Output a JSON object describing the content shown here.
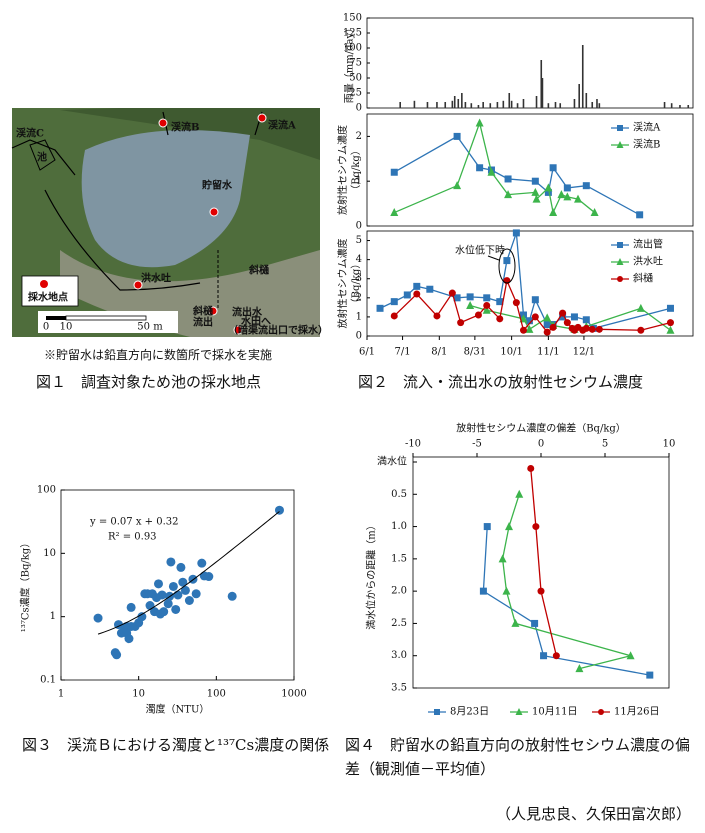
{
  "figure1": {
    "labels": [
      "渓流C",
      "池",
      "渓流B",
      "渓流A",
      "貯留水",
      "斜樋",
      "洪水吐",
      "採水地点",
      "斜樋",
      "流出",
      "流出水",
      "水田へ",
      "（暗渠流出口で採水）"
    ],
    "scale_labels": [
      "0",
      "10",
      "50 m"
    ],
    "note": "※貯留水は鉛直方向に数箇所で採水を実施"
  },
  "captions": [
    "図１　調査対象ため池の採水地点",
    "図２　流入・流出水の放射性セシウム濃度",
    "図３　渓流Ｂにおける濁度と¹³⁷Cs濃度の関係",
    "図４　貯留水の鉛直方向の放射性セシウム濃度の偏差（観測値－平均値）"
  ],
  "author": "（人見忠良、久保田富次郎）",
  "chart_data": [
    {
      "type": "panels",
      "xlim": [
        "6/1",
        "3/3"
      ],
      "xticks": [
        "6/1",
        "7/1",
        "8/1",
        "8/31",
        "10/1",
        "11/1",
        "12/1"
      ],
      "panels": [
        {
          "type": "bar",
          "ylabel": [
            "雨量（mm/day）"
          ],
          "ylim": [
            0,
            150
          ],
          "yticks": [
            0,
            25,
            50,
            75,
            100,
            125,
            150
          ],
          "color": "#333333",
          "x": [
            "6/29",
            "7/11",
            "7/22",
            "7/30",
            "8/6",
            "8/12",
            "8/14",
            "8/17",
            "8/20",
            "8/23",
            "8/28",
            "9/3",
            "9/7",
            "9/13",
            "9/19",
            "9/24",
            "9/29",
            "10/1",
            "10/6",
            "10/11",
            "10/22",
            "10/26",
            "10/27",
            "11/1",
            "11/7",
            "11/11",
            "11/23",
            "11/27",
            "11/30",
            "12/3",
            "12/8",
            "12/12",
            "12/14",
            "2/7",
            "2/13",
            "2/20",
            "2/27"
          ],
          "values": [
            10,
            12,
            10,
            10,
            10,
            12,
            20,
            15,
            25,
            10,
            8,
            5,
            10,
            8,
            10,
            12,
            25,
            12,
            8,
            15,
            20,
            80,
            50,
            8,
            10,
            8,
            15,
            40,
            105,
            25,
            10,
            15,
            8,
            10,
            8,
            5,
            5
          ]
        },
        {
          "type": "line",
          "ylabel": [
            "放射性セシウム濃度",
            "（Bq/kg）"
          ],
          "ylim": [
            0,
            2.5
          ],
          "yticks": [
            0,
            1,
            2
          ],
          "legend": "upper right",
          "series": [
            {
              "name": "渓流A",
              "color": "#2e75b6",
              "marker": "square",
              "x": [
                "6/24",
                "8/16",
                "9/4",
                "9/14",
                "9/28",
                "10/21",
                "11/1",
                "11/5",
                "11/17",
                "12/3",
                "1/17"
              ],
              "values": [
                1.2,
                2.0,
                1.3,
                1.25,
                1.05,
                1.0,
                0.75,
                1.3,
                0.85,
                0.9,
                0.25
              ]
            },
            {
              "name": "渓流B",
              "color": "#3cb44b",
              "marker": "triangle",
              "x": [
                "6/24",
                "8/16",
                "9/4",
                "9/14",
                "9/28",
                "10/21",
                "10/22",
                "11/1",
                "11/5",
                "11/12",
                "11/17",
                "11/26",
                "12/10"
              ],
              "values": [
                0.3,
                0.9,
                2.3,
                1.2,
                0.7,
                0.75,
                0.6,
                0.85,
                0.3,
                0.7,
                0.65,
                0.6,
                0.3
              ]
            }
          ]
        },
        {
          "type": "line",
          "ylabel": [
            "放射性セシウム濃度",
            "（Bq/kg）"
          ],
          "ylim": [
            0,
            5.5
          ],
          "yticks": [
            0,
            1,
            2,
            3,
            4,
            5
          ],
          "legend": "upper right",
          "annotation": "水位低下時",
          "series": [
            {
              "name": "流出管",
              "color": "#2e75b6",
              "marker": "square",
              "x": [
                "6/12",
                "6/24",
                "7/5",
                "7/13",
                "7/24",
                "8/16",
                "8/27",
                "9/10",
                "9/21",
                "9/27",
                "10/5",
                "10/11",
                "10/16",
                "10/21",
                "10/31",
                "11/5",
                "11/13",
                "11/23",
                "12/3",
                "12/9",
                "2/12"
              ],
              "values": [
                1.45,
                1.8,
                2.15,
                2.6,
                2.45,
                2.0,
                2.05,
                2.0,
                1.8,
                3.95,
                5.4,
                1.1,
                0.8,
                1.9,
                0.6,
                0.6,
                1.0,
                1.0,
                0.85,
                0.4,
                1.45
              ]
            },
            {
              "name": "洪水吐",
              "color": "#3cb44b",
              "marker": "triangle",
              "x": [
                "8/27",
                "9/10",
                "10/11",
                "10/16",
                "10/31",
                "11/5",
                "11/23",
                "12/3",
                "1/18",
                "2/12"
              ],
              "values": [
                1.6,
                1.35,
                0.9,
                0.35,
                0.95,
                0.55,
                0.35,
                0.5,
                1.45,
                0.3
              ]
            },
            {
              "name": "斜樋",
              "color": "#c00000",
              "marker": "circle",
              "x": [
                "6/24",
                "7/13",
                "7/30",
                "8/12",
                "8/19",
                "9/3",
                "9/10",
                "9/21",
                "9/27",
                "10/5",
                "10/11",
                "10/21",
                "10/31",
                "11/5",
                "11/13",
                "11/17",
                "11/21",
                "11/23",
                "11/26",
                "11/30",
                "12/3",
                "12/8",
                "12/14",
                "1/18",
                "2/12"
              ],
              "values": [
                1.05,
                2.2,
                1.05,
                2.25,
                0.7,
                1.1,
                1.6,
                0.9,
                2.9,
                1.75,
                0.3,
                1.0,
                0.2,
                0.45,
                1.2,
                0.7,
                0.4,
                0.3,
                0.45,
                0.3,
                0.4,
                0.35,
                0.35,
                0.3,
                0.7
              ]
            }
          ]
        }
      ]
    },
    {
      "type": "scatter",
      "xlabel": "濁度（NTU）",
      "ylabel": "¹³⁷Cs濃度（Bq/kg）",
      "log_scale": true,
      "xlim": [
        1,
        1000
      ],
      "ylim": [
        0.1,
        100
      ],
      "xticks": [
        1,
        10,
        100,
        1000
      ],
      "yticks": [
        0.1,
        1,
        10,
        100
      ],
      "color": "#2e75b6",
      "x": [
        3,
        5,
        5.2,
        5.5,
        6,
        6.5,
        7,
        7,
        7.5,
        8,
        8,
        9,
        10,
        11,
        12,
        13,
        14,
        15,
        16,
        17,
        18,
        19,
        20,
        21,
        24,
        25,
        26,
        28,
        30,
        32,
        35,
        37,
        40,
        45,
        50,
        55,
        65,
        70,
        80,
        160,
        650
      ],
      "values": [
        0.95,
        0.27,
        0.25,
        0.75,
        0.55,
        0.6,
        0.7,
        0.55,
        0.45,
        0.7,
        1.4,
        0.7,
        0.8,
        1.0,
        2.3,
        2.3,
        1.5,
        2.3,
        1.2,
        2.0,
        3.3,
        1.1,
        2.2,
        1.2,
        1.6,
        2.1,
        7.3,
        3.0,
        1.3,
        2.2,
        6.0,
        3.5,
        2.6,
        1.8,
        3.9,
        2.3,
        7.0,
        4.4,
        4.3,
        2.1,
        48
      ],
      "fit": {
        "slope": 0.07,
        "intercept": 0.32
      },
      "annotations": [
        "y = 0.07 x + 0.32",
        "R² = 0.93"
      ]
    },
    {
      "type": "line",
      "xlabel": "放射性セシウム濃度の偏差（Bq/kg）",
      "ylabel": [
        "満水位からの距離（m）"
      ],
      "xlim": [
        -10,
        10
      ],
      "xticks": [
        -10,
        -5,
        0,
        5,
        10
      ],
      "ylim": [
        0,
        3.5
      ],
      "yticks": [
        {
          "value": 0,
          "label": "満水位"
        },
        0.5,
        {
          "value": 1,
          "label": "1.0"
        },
        1.5,
        {
          "value": 2,
          "label": "2.0"
        },
        2.5,
        {
          "value": 3,
          "label": "3.0"
        },
        3.5
      ],
      "y_inverted": true,
      "x_axis": "top",
      "legend": "bottom",
      "series": [
        {
          "name": "8月23日",
          "color": "#2e75b6",
          "marker": "square",
          "x": [
            -4.2,
            -4.5,
            -0.5,
            0.2,
            8.5
          ],
          "values": [
            1.0,
            2.0,
            2.5,
            3.0,
            3.3
          ]
        },
        {
          "name": "10月11日",
          "color": "#3cb44b",
          "marker": "triangle",
          "x": [
            -1.7,
            -2.5,
            -3,
            -2.7,
            -2,
            7,
            3
          ],
          "values": [
            0.5,
            1.0,
            1.5,
            2.0,
            2.5,
            3.0,
            3.2
          ]
        },
        {
          "name": "11月26日",
          "color": "#c00000",
          "marker": "circle",
          "x": [
            -0.8,
            -0.4,
            0,
            1.2
          ],
          "values": [
            0.1,
            1.0,
            2.0,
            3.0
          ]
        }
      ]
    }
  ]
}
